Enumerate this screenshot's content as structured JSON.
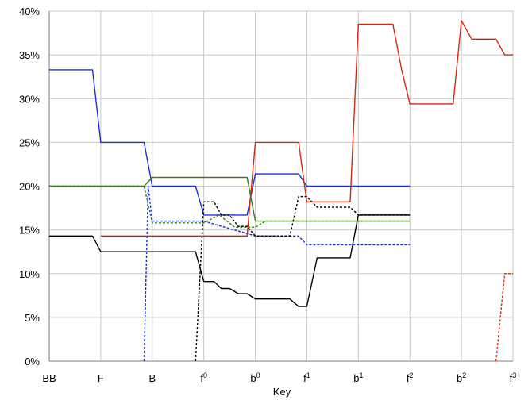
{
  "chart_data": {
    "type": "line",
    "xlabel": "Key",
    "ylabel": "",
    "ylim": [
      0,
      40
    ],
    "x_ticks": [
      {
        "base": "BB",
        "sup": ""
      },
      {
        "base": "F",
        "sup": ""
      },
      {
        "base": "B",
        "sup": ""
      },
      {
        "base": "f",
        "sup": "0"
      },
      {
        "base": "b",
        "sup": "0"
      },
      {
        "base": "f",
        "sup": "1"
      },
      {
        "base": "b",
        "sup": "1"
      },
      {
        "base": "f",
        "sup": "2"
      },
      {
        "base": "b",
        "sup": "2"
      },
      {
        "base": "f",
        "sup": "3"
      }
    ],
    "y_ticks": [
      "0%",
      "5%",
      "10%",
      "15%",
      "20%",
      "25%",
      "30%",
      "35%",
      "40%"
    ],
    "grid": "vertical and horizontal",
    "series": [
      {
        "color": "#1a2ee0",
        "dash": "solid",
        "points": [
          [
            0,
            33.3
          ],
          [
            0.84,
            33.3
          ],
          [
            1,
            25.0
          ],
          [
            1.84,
            25.0
          ],
          [
            2,
            20.0
          ],
          [
            2.84,
            20.0
          ],
          [
            3,
            16.7
          ],
          [
            3.84,
            16.7
          ],
          [
            4,
            21.4
          ],
          [
            4.84,
            21.4
          ],
          [
            5,
            20.0
          ],
          [
            6,
            20.0
          ],
          [
            7,
            20.0
          ]
        ]
      },
      {
        "color": "#1a2ee0",
        "dash": "dotted",
        "points": [
          [
            1.84,
            0
          ],
          [
            1.92,
            20.0
          ],
          [
            2,
            16.0
          ],
          [
            3,
            16.0
          ],
          [
            4,
            14.3
          ],
          [
            4.84,
            14.3
          ],
          [
            5,
            13.3
          ],
          [
            6,
            13.3
          ],
          [
            7,
            13.3
          ]
        ]
      },
      {
        "color": "#3a7d1e",
        "dash": "solid",
        "points": [
          [
            0,
            20.0
          ],
          [
            1.84,
            20.0
          ],
          [
            2,
            21.0
          ],
          [
            3,
            21.0
          ],
          [
            3.84,
            21.0
          ],
          [
            4,
            16.0
          ],
          [
            5,
            16.0
          ],
          [
            6,
            16.0
          ],
          [
            7,
            16.0
          ]
        ]
      },
      {
        "color": "#3a7d1e",
        "dash": "dotted",
        "points": [
          [
            0,
            20.0
          ],
          [
            1.84,
            20.0
          ],
          [
            2,
            15.8
          ],
          [
            3,
            15.8
          ],
          [
            3.3,
            16.7
          ],
          [
            3.6,
            15.3
          ],
          [
            4,
            15.3
          ],
          [
            4.2,
            16.0
          ],
          [
            5,
            16.0
          ],
          [
            6,
            16.0
          ],
          [
            7,
            16.0
          ]
        ]
      },
      {
        "color": "#d42a0c",
        "dash": "solid",
        "points": [
          [
            1,
            14.3
          ],
          [
            2,
            14.3
          ],
          [
            3,
            14.3
          ],
          [
            3.84,
            14.3
          ],
          [
            4,
            25.0
          ],
          [
            4.84,
            25.0
          ],
          [
            5,
            18.2
          ],
          [
            5.84,
            18.2
          ],
          [
            6,
            38.5
          ],
          [
            6.67,
            38.5
          ],
          [
            6.84,
            33.3
          ],
          [
            7,
            29.4
          ],
          [
            7.84,
            29.4
          ],
          [
            8,
            38.9
          ],
          [
            8.2,
            36.8
          ],
          [
            8.67,
            36.8
          ],
          [
            8.84,
            35.0
          ],
          [
            9,
            35.0
          ]
        ]
      },
      {
        "color": "#d42a0c",
        "dash": "dotted",
        "points": [
          [
            8.67,
            0
          ],
          [
            8.84,
            10.0
          ],
          [
            9,
            10.0
          ]
        ]
      },
      {
        "color": "#000000",
        "dash": "solid",
        "points": [
          [
            0,
            14.3
          ],
          [
            0.84,
            14.3
          ],
          [
            1,
            12.5
          ],
          [
            2,
            12.5
          ],
          [
            2.84,
            12.5
          ],
          [
            3,
            9.1
          ],
          [
            3.2,
            9.1
          ],
          [
            3.34,
            8.3
          ],
          [
            3.5,
            8.3
          ],
          [
            3.67,
            7.7
          ],
          [
            3.84,
            7.7
          ],
          [
            4,
            7.1
          ],
          [
            4.67,
            7.1
          ],
          [
            4.84,
            6.25
          ],
          [
            5,
            6.25
          ],
          [
            5.2,
            11.8
          ],
          [
            5.84,
            11.8
          ],
          [
            6,
            16.7
          ],
          [
            7,
            16.7
          ]
        ]
      },
      {
        "color": "#000000",
        "dash": "dotted",
        "points": [
          [
            2.84,
            0
          ],
          [
            3,
            18.2
          ],
          [
            3.2,
            18.2
          ],
          [
            3.34,
            16.7
          ],
          [
            3.5,
            16.7
          ],
          [
            3.67,
            15.4
          ],
          [
            3.84,
            15.4
          ],
          [
            4,
            14.3
          ],
          [
            4.67,
            14.3
          ],
          [
            4.84,
            18.8
          ],
          [
            5,
            18.8
          ],
          [
            5.2,
            17.6
          ],
          [
            5.84,
            17.6
          ],
          [
            6,
            16.7
          ],
          [
            7,
            16.7
          ]
        ]
      }
    ]
  }
}
